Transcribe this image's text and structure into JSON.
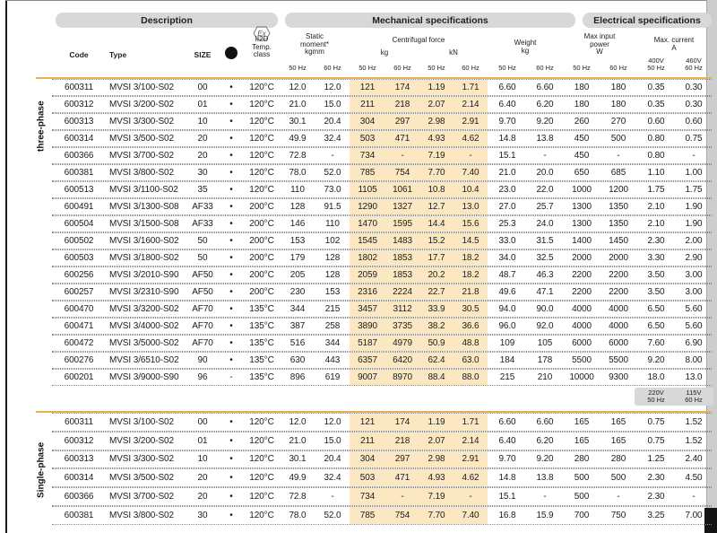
{
  "header": {
    "bands": {
      "description": "Description",
      "mechanical": "Mechanical specifications",
      "electrical": "Electrical specifications"
    },
    "ex_icon": "Ex",
    "cols": {
      "code": "Code",
      "type": "Type",
      "size": "SIZE",
      "temp_class": "II2D\nTemp.\nclass",
      "static_moment": "Static\nmoment*\nkgmm",
      "centrifugal": "Centrifugal force",
      "kg": "kg",
      "kn": "kN",
      "weight": "Weight\nkg",
      "power": "Max input\npower\nW",
      "current": "Max. current\nA",
      "hz50": "50 Hz",
      "hz60": "60 Hz",
      "v400": "400V\n50 Hz",
      "v460": "460V\n60 Hz"
    }
  },
  "row_fields": [
    "code",
    "type",
    "size",
    "csa",
    "temp_class",
    "sm_50hz",
    "sm_60hz",
    "force_kg_50hz",
    "force_kg_60hz",
    "force_kn_50hz",
    "force_kn_60hz",
    "weight_50hz",
    "weight_60hz",
    "power_50hz",
    "power_60hz",
    "current_50hz",
    "current_60hz"
  ],
  "sections": [
    {
      "label": "three-phase",
      "rows": [
        [
          "600311",
          "MVSI 3/100-S02",
          "00",
          "•",
          "120°C",
          "12.0",
          "12.0",
          "121",
          "174",
          "1.19",
          "1.71",
          "6.60",
          "6.60",
          "180",
          "180",
          "0.35",
          "0.30"
        ],
        [
          "600312",
          "MVSI 3/200-S02",
          "01",
          "•",
          "120°C",
          "21.0",
          "15.0",
          "211",
          "218",
          "2.07",
          "2.14",
          "6.40",
          "6.20",
          "180",
          "180",
          "0.35",
          "0.30"
        ],
        [
          "600313",
          "MVSI 3/300-S02",
          "10",
          "•",
          "120°C",
          "30.1",
          "20.4",
          "304",
          "297",
          "2.98",
          "2.91",
          "9.70",
          "9.20",
          "260",
          "270",
          "0.60",
          "0.60"
        ],
        [
          "600314",
          "MVSI 3/500-S02",
          "20",
          "•",
          "120°C",
          "49.9",
          "32.4",
          "503",
          "471",
          "4.93",
          "4.62",
          "14.8",
          "13.8",
          "450",
          "500",
          "0.80",
          "0.75"
        ],
        [
          "600366",
          "MVSI 3/700-S02",
          "20",
          "•",
          "120°C",
          "72.8",
          "-",
          "734",
          "-",
          "7.19",
          "-",
          "15.1",
          "-",
          "450",
          "-",
          "0.80",
          "-"
        ],
        [
          "600381",
          "MVSI 3/800-S02",
          "30",
          "•",
          "120°C",
          "78.0",
          "52.0",
          "785",
          "754",
          "7.70",
          "7.40",
          "21.0",
          "20.0",
          "650",
          "685",
          "1.10",
          "1.00"
        ],
        [
          "600513",
          "MVSI 3/1100-S02",
          "35",
          "•",
          "120°C",
          "110",
          "73.0",
          "1105",
          "1061",
          "10.8",
          "10.4",
          "23.0",
          "22.0",
          "1000",
          "1200",
          "1.75",
          "1.75"
        ],
        [
          "600491",
          "MVSI 3/1300-S08",
          "AF33",
          "•",
          "200°C",
          "128",
          "91.5",
          "1290",
          "1327",
          "12.7",
          "13.0",
          "27.0",
          "25.7",
          "1300",
          "1350",
          "2.10",
          "1.90"
        ],
        [
          "600504",
          "MVSI 3/1500-S08",
          "AF33",
          "•",
          "200°C",
          "146",
          "110",
          "1470",
          "1595",
          "14.4",
          "15.6",
          "25.3",
          "24.0",
          "1300",
          "1350",
          "2.10",
          "1.90"
        ],
        [
          "600502",
          "MVSI 3/1600-S02",
          "50",
          "•",
          "200°C",
          "153",
          "102",
          "1545",
          "1483",
          "15.2",
          "14.5",
          "33.0",
          "31.5",
          "1400",
          "1450",
          "2.30",
          "2.00"
        ],
        [
          "600503",
          "MVSI 3/1800-S02",
          "50",
          "•",
          "200°C",
          "179",
          "128",
          "1802",
          "1853",
          "17.7",
          "18.2",
          "34.0",
          "32.5",
          "2000",
          "2000",
          "3.30",
          "2.90"
        ],
        [
          "600256",
          "MVSI 3/2010-S90",
          "AF50",
          "•",
          "200°C",
          "205",
          "128",
          "2059",
          "1853",
          "20.2",
          "18.2",
          "48.7",
          "46.3",
          "2200",
          "2200",
          "3.50",
          "3.00"
        ],
        [
          "600257",
          "MVSI 3/2310-S90",
          "AF50",
          "•",
          "200°C",
          "230",
          "153",
          "2316",
          "2224",
          "22.7",
          "21.8",
          "49.6",
          "47.1",
          "2200",
          "2200",
          "3.50",
          "3.00"
        ],
        [
          "600470",
          "MVSI 3/3200-S02",
          "AF70",
          "•",
          "135°C",
          "344",
          "215",
          "3457",
          "3112",
          "33.9",
          "30.5",
          "94.0",
          "90.0",
          "4000",
          "4000",
          "6.50",
          "5.60"
        ],
        [
          "600471",
          "MVSI 3/4000-S02",
          "AF70",
          "•",
          "135°C",
          "387",
          "258",
          "3890",
          "3735",
          "38.2",
          "36.6",
          "96.0",
          "92.0",
          "4000",
          "4000",
          "6.50",
          "5.60"
        ],
        [
          "600472",
          "MVSI 3/5000-S02",
          "AF70",
          "•",
          "135°C",
          "516",
          "344",
          "5187",
          "4979",
          "50.9",
          "48.8",
          "109",
          "105",
          "6000",
          "6000",
          "7.60",
          "6.90"
        ],
        [
          "600276",
          "MVSI 3/6510-S02",
          "90",
          "•",
          "135°C",
          "630",
          "443",
          "6357",
          "6420",
          "62.4",
          "63.0",
          "184",
          "178",
          "5500",
          "5500",
          "9.20",
          "8.00"
        ],
        [
          "600201",
          "MVSI 3/9000-S90",
          "96",
          "-",
          "135°C",
          "896",
          "619",
          "9007",
          "8970",
          "88.4",
          "88.0",
          "215",
          "210",
          "10000",
          "9300",
          "18.0",
          "13.0"
        ]
      ]
    },
    {
      "label": "Single-phase",
      "voltage_chips": [
        "220V\n50 Hz",
        "115V\n60 Hz"
      ],
      "rows": [
        [
          "600311",
          "MVSI 3/100-S02",
          "00",
          "•",
          "120°C",
          "12.0",
          "12.0",
          "121",
          "174",
          "1.19",
          "1.71",
          "6.60",
          "6.60",
          "165",
          "165",
          "0.75",
          "1.52"
        ],
        [
          "600312",
          "MVSI 3/200-S02",
          "01",
          "•",
          "120°C",
          "21.0",
          "15.0",
          "211",
          "218",
          "2.07",
          "2.14",
          "6.40",
          "6.20",
          "165",
          "165",
          "0.75",
          "1.52"
        ],
        [
          "600313",
          "MVSI 3/300-S02",
          "10",
          "•",
          "120°C",
          "30.1",
          "20.4",
          "304",
          "297",
          "2.98",
          "2.91",
          "9.70",
          "9.20",
          "280",
          "280",
          "1.25",
          "2.40"
        ],
        [
          "600314",
          "MVSI 3/500-S02",
          "20",
          "•",
          "120°C",
          "49.9",
          "32.4",
          "503",
          "471",
          "4.93",
          "4.62",
          "14.8",
          "13.8",
          "500",
          "500",
          "2.30",
          "4.50"
        ],
        [
          "600366",
          "MVSI 3/700-S02",
          "20",
          "•",
          "120°C",
          "72.8",
          "-",
          "734",
          "-",
          "7.19",
          "-",
          "15.1",
          "-",
          "500",
          "-",
          "2.30",
          "-"
        ],
        [
          "600381",
          "MVSI 3/800-S02",
          "30",
          "•",
          "120°C",
          "78.0",
          "52.0",
          "785",
          "754",
          "7.70",
          "7.40",
          "16.8",
          "15.9",
          "700",
          "750",
          "3.25",
          "7.00"
        ]
      ]
    }
  ]
}
